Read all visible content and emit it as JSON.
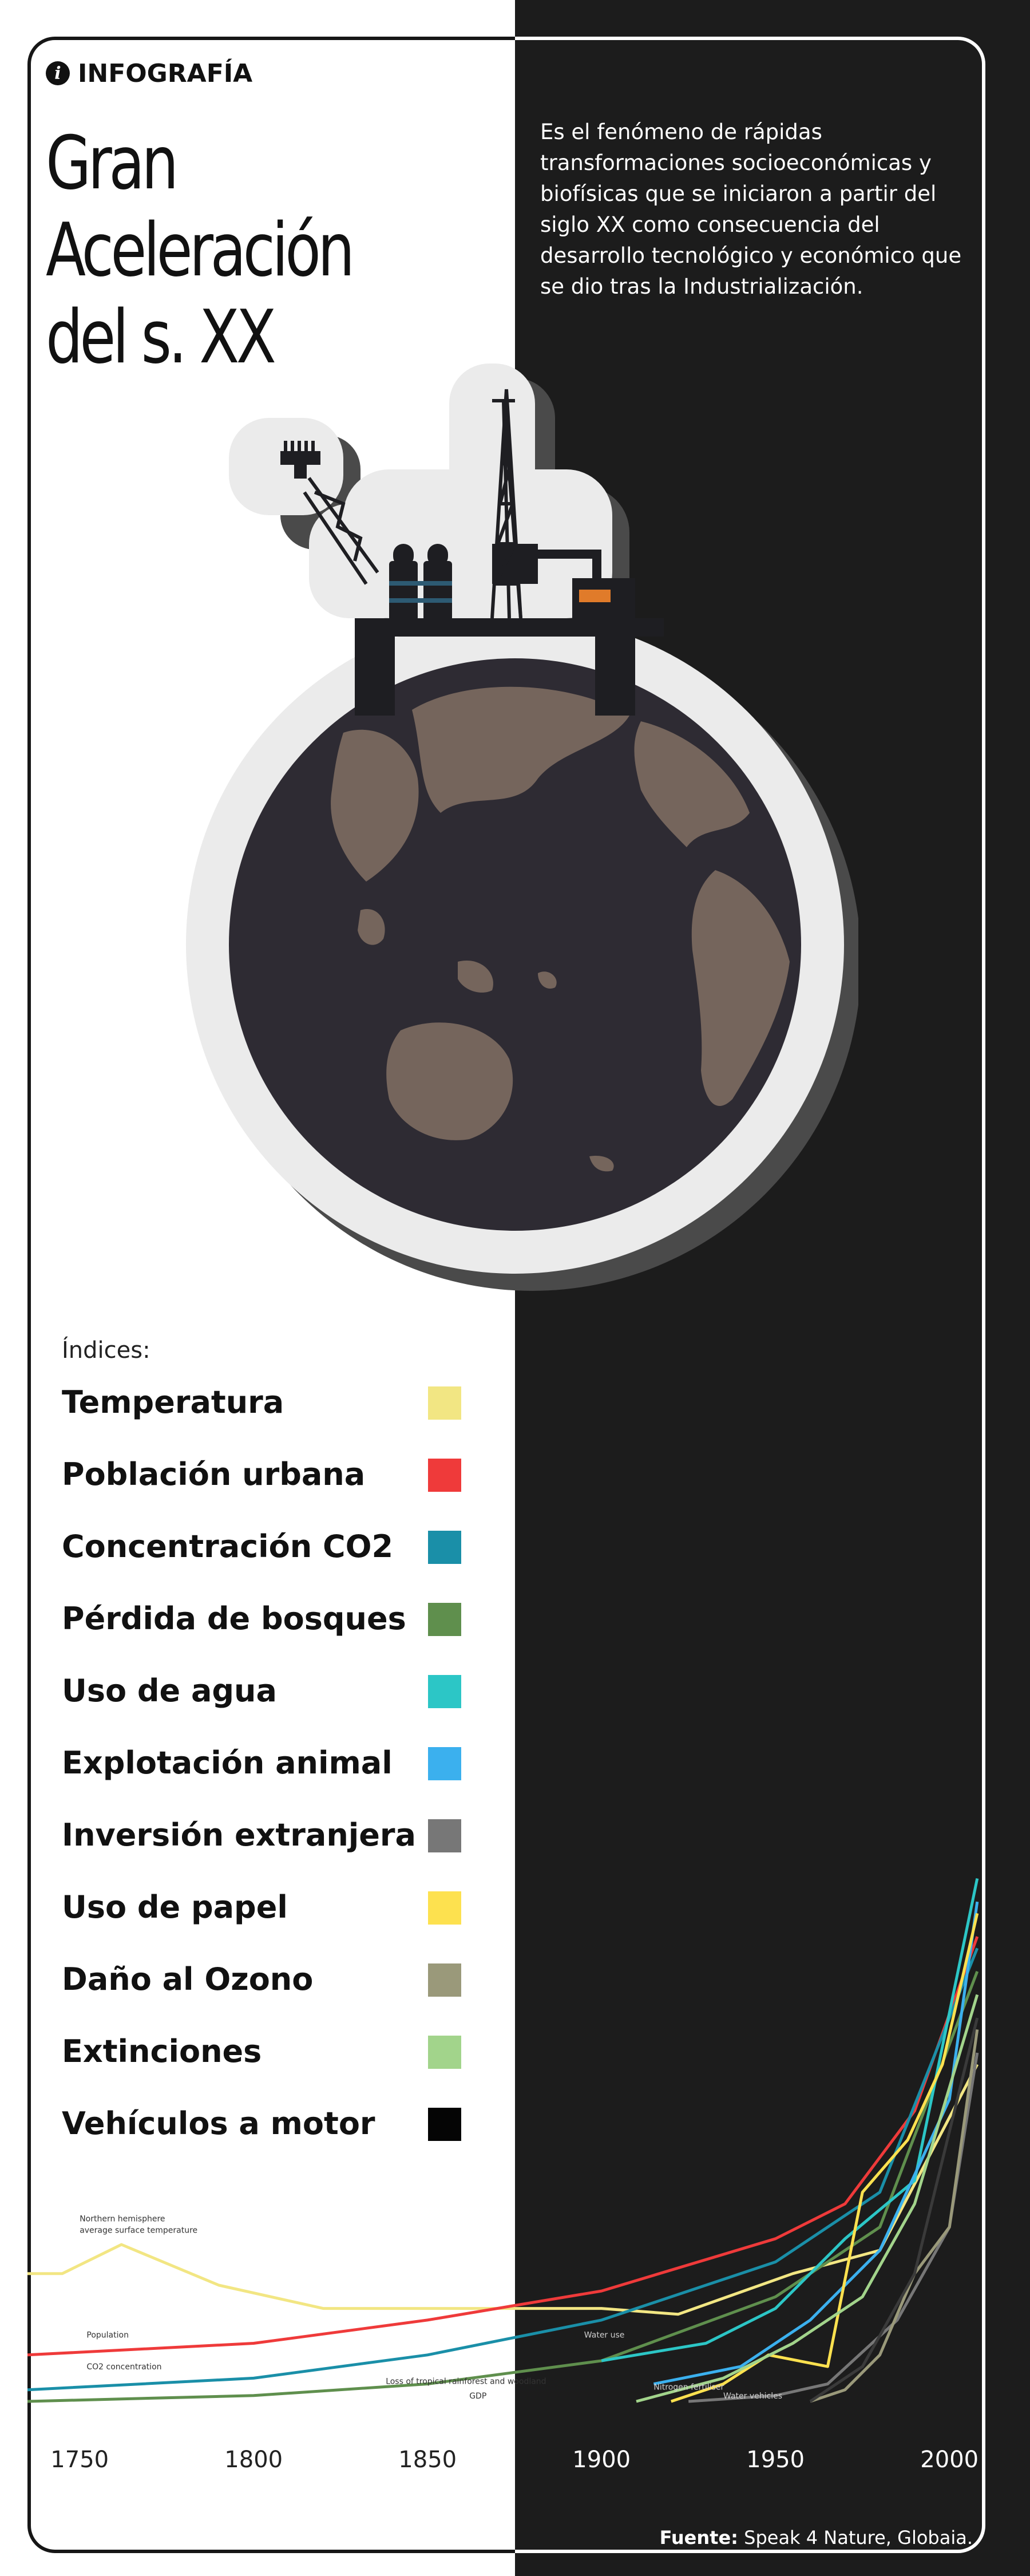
{
  "header": {
    "badge_label": "INFOGRAFÍA",
    "title_line1": "Gran Aceleración",
    "title_line2": "del s. XX",
    "description": "Es el fenómeno de rápidas transformaciones socioeconómicas y biofísicas que se iniciaron a partir del siglo XX como consecuencia del desarrollo tecnológico y económico que se dio tras la Industrialización."
  },
  "icons": {
    "info": "info-icon",
    "illustration": "oil-platform-on-earth-illustration"
  },
  "colors": {
    "light_bg": "#ffffff",
    "dark_bg": "#1c1c1c",
    "globe_ocean": "#2e2b33",
    "globe_land": "#75655c"
  },
  "legend": {
    "title": "Índices:",
    "items": [
      {
        "label": "Temperatura",
        "color": "#f2e683"
      },
      {
        "label": "Población urbana",
        "color": "#ef3a3a"
      },
      {
        "label": "Concentración CO2",
        "color": "#1a8fa8"
      },
      {
        "label": "Pérdida de bosques",
        "color": "#5f8f4d"
      },
      {
        "label": "Uso de agua",
        "color": "#2cc6c6"
      },
      {
        "label": "Explotación animal",
        "color": "#3bb0ee"
      },
      {
        "label": "Inversión extranjera",
        "color": "#777777"
      },
      {
        "label": "Uso de papel",
        "color": "#fde14f"
      },
      {
        "label": "Daño al Ozono",
        "color": "#9a997a"
      },
      {
        "label": "Extinciones",
        "color": "#a2d48b"
      },
      {
        "label": "Vehículos a motor",
        "color": "#050505"
      }
    ]
  },
  "chart_data": {
    "type": "line",
    "title": "",
    "xlabel": "",
    "ylabel": "",
    "xlim": [
      1735,
      2010
    ],
    "ylim": [
      0,
      100
    ],
    "x_ticks": [
      1750,
      1800,
      1850,
      1900,
      1950,
      2000
    ],
    "grid": false,
    "annotations": [
      {
        "text": "Northern hemisphere",
        "x": 1750,
        "y": 31
      },
      {
        "text": "average surface temperature",
        "x": 1750,
        "y": 29
      },
      {
        "text": "Population",
        "x": 1752,
        "y": 11
      },
      {
        "text": "CO2 concentration",
        "x": 1752,
        "y": 5.5
      },
      {
        "text": "Loss of tropical rainforest and woodland",
        "x": 1838,
        "y": 3
      },
      {
        "text": "GDP",
        "x": 1862,
        "y": 0.5
      },
      {
        "text": "Water use",
        "x": 1895,
        "y": 11
      },
      {
        "text": "Nitrogen fertiliser",
        "x": 1915,
        "y": 2
      },
      {
        "text": "Water vehicles",
        "x": 1935,
        "y": 0.5
      }
    ],
    "series": [
      {
        "name": "Temperatura",
        "color": "#f2e683",
        "x": [
          1735,
          1745,
          1762,
          1790,
          1820,
          1870,
          1900,
          1922,
          1955,
          1980,
          2008
        ],
        "y": [
          22,
          22,
          27,
          20,
          16,
          16,
          16,
          15,
          22,
          26,
          58
        ]
      },
      {
        "name": "Población urbana",
        "color": "#ef3a3a",
        "x": [
          1735,
          1800,
          1850,
          1900,
          1950,
          1970,
          1990,
          2008
        ],
        "y": [
          8,
          10,
          14,
          19,
          28,
          34,
          50,
          80
        ]
      },
      {
        "name": "Concentración CO2",
        "color": "#1a8fa8",
        "x": [
          1735,
          1800,
          1850,
          1900,
          1950,
          1980,
          2008
        ],
        "y": [
          2,
          4,
          8,
          14,
          24,
          36,
          78
        ]
      },
      {
        "name": "Pérdida de bosques",
        "color": "#5f8f4d",
        "x": [
          1735,
          1800,
          1850,
          1900,
          1950,
          1980,
          2008
        ],
        "y": [
          0,
          1,
          3,
          7,
          18,
          30,
          74
        ]
      },
      {
        "name": "Uso de agua",
        "color": "#2cc6c6",
        "x": [
          1900,
          1930,
          1950,
          1970,
          1990,
          2008
        ],
        "y": [
          7,
          10,
          16,
          28,
          38,
          90
        ]
      },
      {
        "name": "Explotación animal",
        "color": "#3bb0ee",
        "x": [
          1915,
          1940,
          1960,
          1980,
          2000,
          2008
        ],
        "y": [
          3,
          6,
          14,
          26,
          52,
          86
        ]
      },
      {
        "name": "Inversión extranjera",
        "color": "#777777",
        "x": [
          1925,
          1950,
          1965,
          1985,
          2000,
          2008
        ],
        "y": [
          0,
          1,
          3,
          14,
          30,
          60
        ]
      },
      {
        "name": "Uso de papel",
        "color": "#fde14f",
        "x": [
          1920,
          1935,
          1948,
          1965,
          1975,
          1988,
          1998,
          2008
        ],
        "y": [
          0,
          3,
          8,
          6,
          36,
          45,
          58,
          84
        ]
      },
      {
        "name": "Daño al Ozono",
        "color": "#9a997a",
        "x": [
          1960,
          1970,
          1980,
          1990,
          2000,
          2008
        ],
        "y": [
          0,
          2,
          8,
          22,
          30,
          64
        ]
      },
      {
        "name": "Extinciones",
        "color": "#a2d48b",
        "x": [
          1910,
          1935,
          1955,
          1975,
          1990,
          2008
        ],
        "y": [
          0,
          4,
          10,
          18,
          34,
          70
        ]
      },
      {
        "name": "Vehículos a motor",
        "color": "#050505",
        "x": [
          1960,
          1975,
          1990,
          2008
        ],
        "y": [
          0,
          6,
          22,
          66
        ]
      }
    ]
  },
  "footer": {
    "source_label": "Fuente:",
    "source_text": "Speak 4 Nature, Globaia."
  }
}
